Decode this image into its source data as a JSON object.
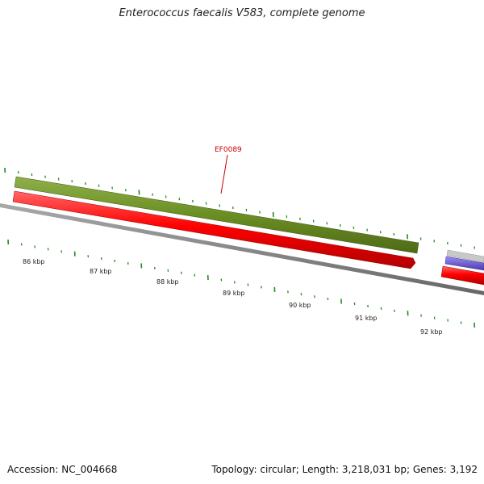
{
  "header": {
    "title": "Enterococcus faecalis V583, complete genome"
  },
  "footer": {
    "accession": "Accession: NC_004668",
    "summary": "Topology: circular; Length: 3,218,031 bp; Genes: 3,192"
  },
  "scale": {
    "labels": [
      "86 kbp",
      "87 kbp",
      "88 kbp",
      "89 kbp",
      "90 kbp",
      "91 kbp",
      "92 kbp"
    ]
  },
  "genes": {
    "highlighted": "EF0089"
  },
  "colors": {
    "forward_track": "#6b8e23",
    "reverse_track": "#ff0000",
    "backbone": "#888888",
    "ticks": "#228b22",
    "highlight_label": "#cc0000",
    "blue_feature": "#6a5acd"
  }
}
